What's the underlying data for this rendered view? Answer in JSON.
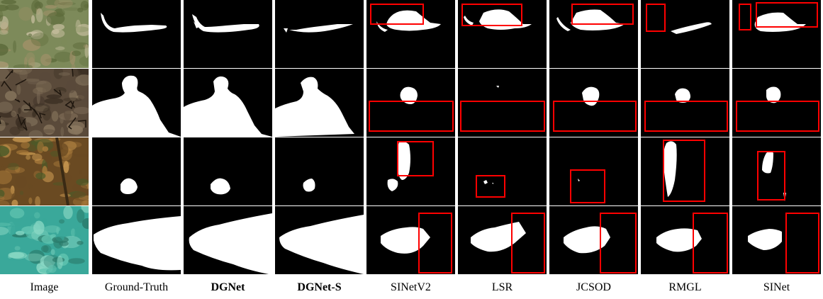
{
  "figure": {
    "columns": [
      {
        "key": "image",
        "label": "Image",
        "bold": false
      },
      {
        "key": "gt",
        "label": "Ground-Truth",
        "bold": false
      },
      {
        "key": "dgnet",
        "label": "DGNet",
        "bold": true
      },
      {
        "key": "dgnets",
        "label": "DGNet-S",
        "bold": true
      },
      {
        "key": "sinetv2",
        "label": "SINetV2",
        "bold": false
      },
      {
        "key": "lsr",
        "label": "LSR",
        "bold": false
      },
      {
        "key": "jcsod",
        "label": "JCSOD",
        "bold": false
      },
      {
        "key": "rmgl",
        "label": "RMGL",
        "bold": false
      },
      {
        "key": "sinet",
        "label": "SINet",
        "bold": false
      }
    ],
    "rows": [
      {
        "subject": "camouflaged fish on riverbed",
        "scene_colors": [
          "#7d8a5a",
          "#a09068",
          "#5c6a3a",
          "#c8bfa0"
        ]
      },
      {
        "subject": "person painted on cracked earth",
        "scene_colors": [
          "#5a4a3a",
          "#7a6a55",
          "#3a2e22",
          "#8e7c62"
        ]
      },
      {
        "subject": "frog among fallen leaves",
        "scene_colors": [
          "#6a4a22",
          "#a87a3a",
          "#4a5a28",
          "#c89850"
        ]
      },
      {
        "subject": "fish on teal textured background",
        "scene_colors": [
          "#3aa89a",
          "#62c4b0",
          "#2a7a6a",
          "#8ad8c4"
        ]
      }
    ],
    "colors": {
      "mask": "#ffffff",
      "background": "#000000",
      "error_box": "#ff0000",
      "page": "#ffffff"
    }
  }
}
